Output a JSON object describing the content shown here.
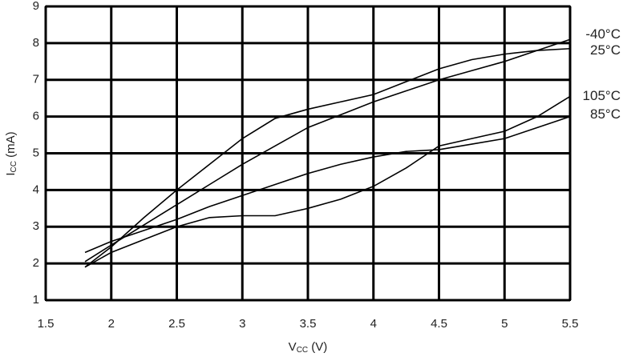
{
  "chart_data": {
    "type": "line",
    "xlabel_parts": [
      "V",
      "CC",
      " (V)"
    ],
    "ylabel_parts": [
      "I",
      "CC",
      " (mA)"
    ],
    "x": [
      1.8,
      2,
      2.25,
      2.5,
      2.75,
      3,
      3.25,
      3.5,
      3.75,
      4,
      4.25,
      4.5,
      4.75,
      5,
      5.25,
      5.5
    ],
    "series": [
      {
        "name": "-40°C",
        "color": "#000000",
        "values": [
          2.05,
          2.5,
          3.05,
          3.6,
          4.15,
          4.7,
          5.2,
          5.7,
          6.05,
          6.4,
          6.7,
          7.0,
          7.25,
          7.5,
          7.8,
          8.1
        ]
      },
      {
        "name": "25°C",
        "color": "#000000",
        "values": [
          1.9,
          2.45,
          3.25,
          4.0,
          4.7,
          5.4,
          5.95,
          6.2,
          6.4,
          6.6,
          6.95,
          7.3,
          7.55,
          7.7,
          7.8,
          7.85
        ]
      },
      {
        "name": "105°C",
        "color": "#000000",
        "values": [
          1.9,
          2.3,
          2.65,
          3.0,
          3.25,
          3.3,
          3.3,
          3.5,
          3.75,
          4.1,
          4.6,
          5.2,
          5.4,
          5.6,
          6.0,
          6.55
        ]
      },
      {
        "name": "85°C",
        "color": "#000000",
        "values": [
          2.3,
          2.6,
          2.9,
          3.2,
          3.55,
          3.85,
          4.15,
          4.45,
          4.7,
          4.9,
          5.05,
          5.1,
          5.25,
          5.4,
          5.7,
          6.0
        ]
      }
    ],
    "xlim": [
      1.5,
      5.5
    ],
    "xticks": [
      1.5,
      2,
      2.5,
      3,
      3.5,
      4,
      4.5,
      5,
      5.5
    ],
    "ylim": [
      1,
      9
    ],
    "yticks": [
      1,
      2,
      3,
      4,
      5,
      6,
      7,
      8,
      9
    ],
    "grid": true
  }
}
